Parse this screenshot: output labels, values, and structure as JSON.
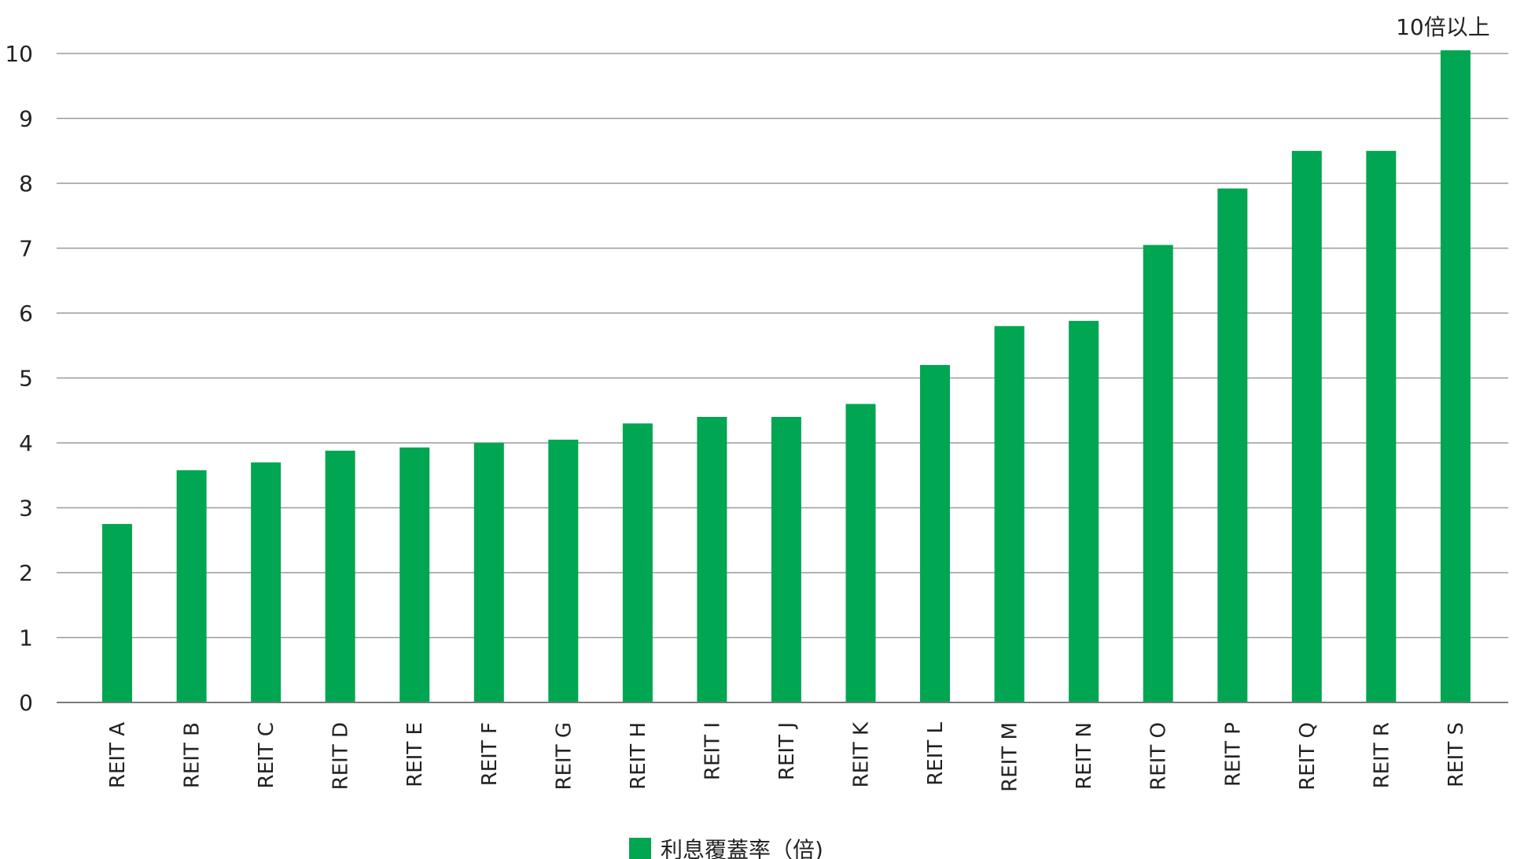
{
  "chart_data": {
    "type": "bar",
    "categories": [
      "REIT A",
      "REIT B",
      "REIT C",
      "REIT D",
      "REIT E",
      "REIT F",
      "REIT G",
      "REIT H",
      "REIT I",
      "REIT J",
      "REIT K",
      "REIT L",
      "REIT M",
      "REIT N",
      "REIT O",
      "REIT P",
      "REIT Q",
      "REIT R",
      "REIT S"
    ],
    "series": [
      {
        "name": "利息覆蓋率（倍)",
        "values": [
          2.75,
          3.58,
          3.7,
          3.88,
          3.93,
          4.0,
          4.05,
          4.3,
          4.4,
          4.4,
          4.6,
          5.2,
          5.8,
          5.88,
          7.05,
          7.92,
          8.5,
          8.5,
          10.05
        ],
        "color": "#00a651"
      }
    ],
    "title": "",
    "xlabel": "",
    "ylabel": "",
    "ylim": [
      0,
      10
    ],
    "yticks": [
      "0",
      "1",
      "2",
      "3",
      "4",
      "5",
      "6",
      "7",
      "8",
      "9",
      "10"
    ],
    "grid": true,
    "legend_position": "bottom-center",
    "annotations": [
      {
        "category": "REIT S",
        "text": "10倍以上"
      }
    ]
  }
}
